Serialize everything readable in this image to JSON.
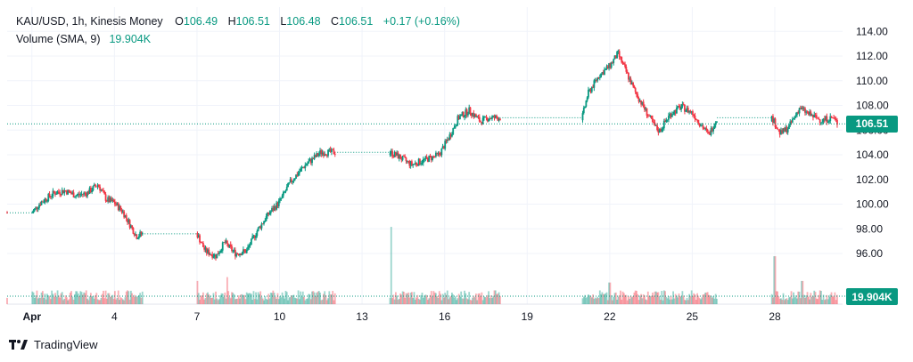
{
  "legend": {
    "symbol": "KAU/USD, 1h, Kinesis Money",
    "open_label": "O",
    "open": "106.49",
    "high_label": "H",
    "high": "106.51",
    "low_label": "L",
    "low": "106.48",
    "close_label": "C",
    "close": "106.51",
    "change": "+0.17 (+0.16%)",
    "volume_label": "Volume (SMA, 9)",
    "volume_value": "19.904K"
  },
  "badges": {
    "price": "106.51",
    "volume": "19.904K"
  },
  "footer": {
    "brand": "TradingView"
  },
  "colors": {
    "up": "#089981",
    "down": "#F23645",
    "badge": "#089981",
    "grid": "#f0f3fa",
    "text": "#131722"
  },
  "chart_data": {
    "type": "candlestick",
    "title": "KAU/USD, 1h, Kinesis Money",
    "ylim": [
      94.2,
      115.1
    ],
    "y_ticks": [
      "114.00",
      "112.00",
      "110.00",
      "108.00",
      "106.00",
      "104.00",
      "102.00",
      "100.00",
      "98.00",
      "96.00"
    ],
    "x_ticks": [
      {
        "label": "Apr",
        "day": 1
      },
      {
        "label": "4",
        "day": 4
      },
      {
        "label": "7",
        "day": 7
      },
      {
        "label": "10",
        "day": 10
      },
      {
        "label": "13",
        "day": 13
      },
      {
        "label": "16",
        "day": 16
      },
      {
        "label": "19",
        "day": 19
      },
      {
        "label": "22",
        "day": 22
      },
      {
        "label": "25",
        "day": 25
      },
      {
        "label": "28",
        "day": 28
      }
    ],
    "x_range_days": [
      0.1,
      30.3
    ],
    "price_path": [
      [
        0.1,
        99.3
      ],
      [
        1.0,
        99.3
      ],
      [
        1.3,
        100.1
      ],
      [
        1.8,
        100.9
      ],
      [
        2.2,
        101.1
      ],
      [
        2.6,
        100.7
      ],
      [
        3.0,
        100.9
      ],
      [
        3.4,
        101.6
      ],
      [
        3.7,
        100.4
      ],
      [
        4.0,
        100.1
      ],
      [
        4.3,
        99.4
      ],
      [
        4.6,
        98.2
      ],
      [
        4.8,
        97.4
      ],
      [
        5.0,
        97.6
      ],
      [
        7.0,
        97.6
      ],
      [
        7.3,
        96.2
      ],
      [
        7.7,
        95.8
      ],
      [
        8.0,
        96.9
      ],
      [
        8.4,
        96.0
      ],
      [
        8.8,
        96.2
      ],
      [
        9.2,
        97.9
      ],
      [
        9.6,
        99.2
      ],
      [
        10.0,
        100.2
      ],
      [
        10.4,
        101.8
      ],
      [
        10.9,
        103.1
      ],
      [
        11.5,
        104.2
      ],
      [
        12.0,
        104.2
      ],
      [
        14.0,
        104.2
      ],
      [
        14.3,
        103.9
      ],
      [
        14.8,
        103.2
      ],
      [
        15.3,
        103.6
      ],
      [
        15.8,
        104.0
      ],
      [
        16.2,
        105.6
      ],
      [
        16.5,
        107.0
      ],
      [
        16.9,
        107.6
      ],
      [
        17.3,
        106.7
      ],
      [
        17.6,
        107.0
      ],
      [
        18.0,
        107.0
      ],
      [
        21.0,
        107.0
      ],
      [
        21.2,
        108.9
      ],
      [
        21.6,
        110.4
      ],
      [
        22.0,
        111.2
      ],
      [
        22.3,
        112.2
      ],
      [
        22.6,
        110.7
      ],
      [
        22.9,
        109.2
      ],
      [
        23.3,
        107.6
      ],
      [
        23.6,
        106.4
      ],
      [
        23.8,
        105.9
      ],
      [
        24.2,
        107.3
      ],
      [
        24.6,
        107.9
      ],
      [
        25.0,
        107.4
      ],
      [
        25.3,
        106.5
      ],
      [
        25.6,
        105.6
      ],
      [
        25.9,
        107.0
      ],
      [
        27.9,
        107.0
      ],
      [
        28.2,
        105.7
      ],
      [
        28.5,
        106.2
      ],
      [
        28.9,
        107.8
      ],
      [
        29.3,
        107.2
      ],
      [
        29.7,
        106.8
      ],
      [
        30.1,
        107.0
      ],
      [
        30.3,
        106.5
      ]
    ],
    "flat_segments": [
      [
        0.1,
        1.0,
        99.3
      ],
      [
        5.0,
        7.0,
        97.6
      ],
      [
        12.0,
        14.0,
        104.2
      ],
      [
        18.0,
        21.0,
        107.0
      ],
      [
        25.9,
        27.9,
        107.0
      ]
    ],
    "last_price": 106.51,
    "volume": {
      "sma_label": "Volume (SMA, 9)",
      "sma_value": "19.904K",
      "spikes": [
        [
          14.05,
          1.0
        ],
        [
          28.0,
          0.62
        ],
        [
          7.0,
          0.3
        ],
        [
          8.1,
          0.35
        ],
        [
          22.0,
          0.28
        ],
        [
          29.0,
          0.3
        ]
      ]
    }
  }
}
